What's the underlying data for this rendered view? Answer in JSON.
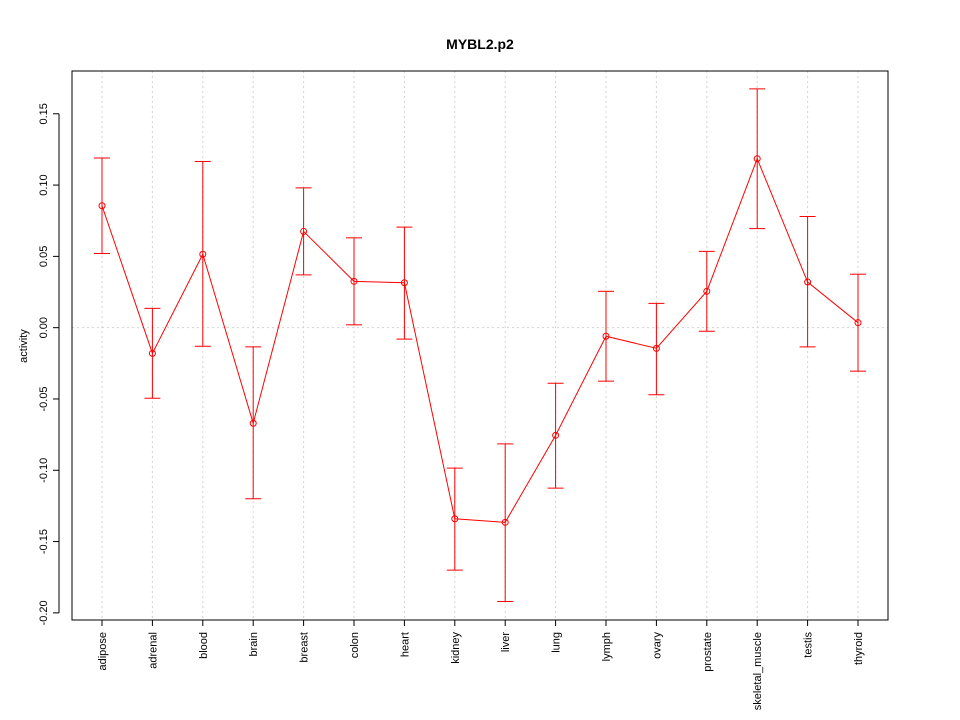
{
  "chart_data": {
    "type": "line",
    "title": "MYBL2.p2",
    "xlabel": "",
    "ylabel": "activity",
    "categories": [
      "adipose",
      "adrenal",
      "blood",
      "brain",
      "breast",
      "colon",
      "heart",
      "kidney",
      "liver",
      "lung",
      "lymph",
      "ovary",
      "prostate",
      "skeletal_muscle",
      "testis",
      "thyroid"
    ],
    "series": [
      {
        "values": [
          0.0855,
          -0.018,
          0.0515,
          -0.067,
          0.0675,
          0.0325,
          0.0315,
          -0.134,
          -0.1365,
          -0.0755,
          -0.006,
          -0.0145,
          0.0255,
          0.1185,
          0.032,
          0.0035
        ],
        "lower": [
          0.052,
          -0.0495,
          -0.013,
          -0.12,
          0.037,
          0.002,
          -0.008,
          -0.17,
          -0.192,
          -0.1125,
          -0.0375,
          -0.047,
          -0.0025,
          0.0695,
          -0.0135,
          -0.0305
        ],
        "upper": [
          0.119,
          0.0135,
          0.1165,
          -0.0135,
          0.098,
          0.063,
          0.0705,
          -0.0985,
          -0.0815,
          -0.039,
          0.0255,
          0.017,
          0.0535,
          0.1675,
          0.078,
          0.0375
        ]
      }
    ],
    "yticks": [
      "-0.20",
      "-0.15",
      "-0.10",
      "-0.05",
      "0.00",
      "0.05",
      "0.10",
      "0.15"
    ],
    "ylim": [
      -0.205,
      0.18
    ],
    "grid": true,
    "colors": {
      "series": "#ff0000",
      "grid": "#d3d3d3",
      "axis": "#000000"
    }
  }
}
